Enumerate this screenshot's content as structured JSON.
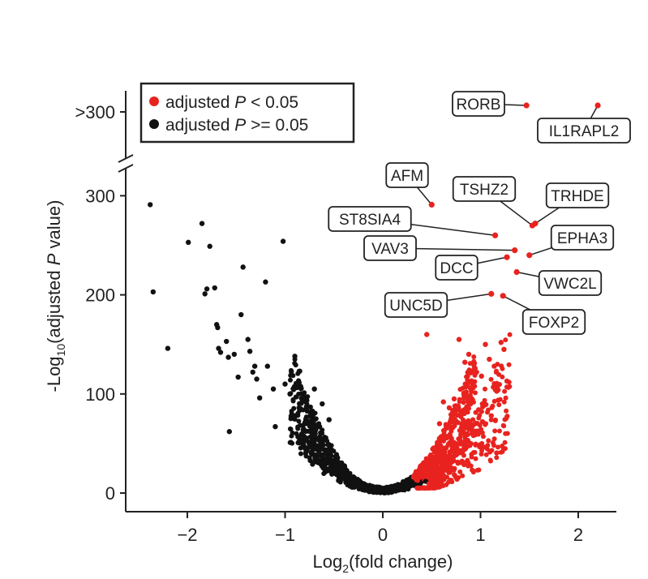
{
  "chart_data": {
    "type": "scatter",
    "title": "",
    "xlabel": {
      "prefix": "Log",
      "sub": "2",
      "suffix": "(fold change)"
    },
    "ylabel": {
      "prefix": "-Log",
      "sub": "10",
      "suffix_a": "(adjusted ",
      "italic": "P",
      "suffix_b": " value)"
    },
    "xlim": [
      -2.6,
      2.4
    ],
    "ylim": [
      0,
      320
    ],
    "x_ticks": [
      -2,
      -1,
      0,
      1,
      2
    ],
    "x_tick_labels": [
      "−2",
      "−1",
      "0",
      "1",
      "2"
    ],
    "y_ticks": [
      0,
      100,
      200,
      300
    ],
    "y_tick_labels": [
      "0",
      "100",
      "200",
      "300"
    ],
    "y_break_tick_label": ">300",
    "y_axis_break": true,
    "grid": false,
    "legend_position": "top-left",
    "legend": [
      {
        "color": "#e8231f",
        "pre": "adjusted ",
        "italic": "P",
        "post": " < 0.05"
      },
      {
        "color": "#111111",
        "pre": "adjusted ",
        "italic": "P",
        "post": " >= 0.05"
      }
    ],
    "colors": {
      "significant": "#e8231f",
      "not_significant": "#111111"
    },
    "series": [
      {
        "color": "#111111",
        "points": [
          [
            -2.38,
            291
          ],
          [
            -2.35,
            203
          ],
          [
            -2.2,
            146
          ],
          [
            -1.99,
            253
          ],
          [
            -1.85,
            272
          ],
          [
            -1.82,
            201
          ],
          [
            -1.8,
            206
          ],
          [
            -1.77,
            249
          ],
          [
            -1.72,
            207
          ],
          [
            -1.7,
            170
          ],
          [
            -1.69,
            167
          ],
          [
            -1.68,
            146
          ],
          [
            -1.66,
            142
          ],
          [
            -1.6,
            153
          ],
          [
            -1.58,
            137
          ],
          [
            -1.57,
            62
          ],
          [
            -1.52,
            140
          ],
          [
            -1.48,
            117
          ],
          [
            -1.45,
            180
          ],
          [
            -1.43,
            228
          ],
          [
            -1.38,
            155
          ],
          [
            -1.36,
            143
          ],
          [
            -1.33,
            122
          ],
          [
            -1.31,
            128
          ],
          [
            -1.29,
            115
          ],
          [
            -1.26,
            96
          ],
          [
            -1.2,
            213
          ],
          [
            -1.18,
            128
          ],
          [
            -1.12,
            105
          ],
          [
            -1.1,
            67
          ],
          [
            -1.02,
            254
          ],
          [
            -1.0,
            110
          ],
          [
            -0.95,
            100
          ],
          [
            -0.9,
            138
          ],
          [
            -0.85,
            123
          ],
          [
            -0.78,
            85
          ],
          [
            -0.7,
            105
          ],
          [
            -0.62,
            90
          ],
          [
            -0.55,
            74
          ]
        ]
      },
      {
        "color": "#e8231f",
        "points": [
          [
            0.45,
            160
          ],
          [
            0.78,
            155
          ],
          [
            0.84,
            132
          ],
          [
            0.88,
            140
          ],
          [
            0.92,
            108
          ],
          [
            0.96,
            122
          ],
          [
            1.01,
            118
          ],
          [
            1.05,
            150
          ],
          [
            1.09,
            135
          ],
          [
            1.14,
            128
          ],
          [
            1.18,
            104
          ],
          [
            1.21,
            152
          ],
          [
            1.24,
            145
          ],
          [
            1.27,
            113
          ],
          [
            0.62,
            92
          ],
          [
            0.68,
            86
          ],
          [
            0.73,
            95
          ],
          [
            0.98,
            84
          ],
          [
            1.02,
            72
          ],
          [
            1.11,
            78
          ],
          [
            0.58,
            70
          ],
          [
            0.86,
            66
          ]
        ]
      }
    ],
    "labeled_points": [
      {
        "gene": "RORB",
        "x": 1.47,
        "y": ">300",
        "color": "#e8231f"
      },
      {
        "gene": "IL1RAPL2",
        "x": 2.2,
        "y": ">300",
        "color": "#e8231f"
      },
      {
        "gene": "AFM",
        "x": 0.5,
        "y": 291,
        "color": "#e8231f"
      },
      {
        "gene": "TSHZ2",
        "x": 1.53,
        "y": 270,
        "color": "#e8231f"
      },
      {
        "gene": "TRHDE",
        "x": 1.56,
        "y": 272,
        "color": "#e8231f"
      },
      {
        "gene": "ST8SIA4",
        "x": 1.15,
        "y": 260,
        "color": "#e8231f"
      },
      {
        "gene": "EPHA3",
        "x": 1.5,
        "y": 240,
        "color": "#e8231f"
      },
      {
        "gene": "VAV3",
        "x": 1.35,
        "y": 245,
        "color": "#e8231f"
      },
      {
        "gene": "DCC",
        "x": 1.27,
        "y": 238,
        "color": "#e8231f"
      },
      {
        "gene": "VWC2L",
        "x": 1.37,
        "y": 223,
        "color": "#e8231f"
      },
      {
        "gene": "UNC5D",
        "x": 1.11,
        "y": 201,
        "color": "#e8231f"
      },
      {
        "gene": "FOXP2",
        "x": 1.23,
        "y": 199,
        "color": "#e8231f"
      }
    ]
  }
}
